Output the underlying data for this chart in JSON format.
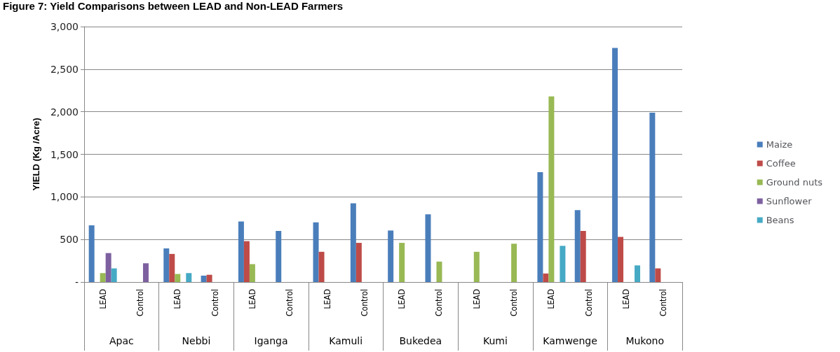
{
  "chart_data": {
    "type": "bar",
    "title": "Figure 7: Yield Comparisons between LEAD and Non-LEAD Farmers",
    "ylabel": "YIELD (Kg /Acre)",
    "categories": [
      "LEAD",
      "Control",
      "LEAD",
      "Control",
      "LEAD",
      "Control",
      "LEAD",
      "Control",
      "LEAD",
      "Control",
      "LEAD",
      "Control",
      "LEAD",
      "Control",
      "LEAD",
      "Control"
    ],
    "annotations": [
      "Apac",
      "Nebbi",
      "Iganga",
      "Kamuli",
      "Bukedea",
      "Kumi",
      "Kamwenge",
      "Mukono"
    ],
    "series": [
      {
        "name": "Maize",
        "color": "#4a7ebb",
        "values": [
          665,
          0,
          395,
          75,
          710,
          600,
          700,
          925,
          605,
          795,
          0,
          0,
          1290,
          845,
          2750,
          1990
        ]
      },
      {
        "name": "Coffee",
        "color": "#be4b48",
        "values": [
          0,
          0,
          330,
          85,
          480,
          0,
          355,
          460,
          0,
          0,
          0,
          0,
          100,
          600,
          530,
          160
        ]
      },
      {
        "name": "Ground nuts",
        "color": "#98b954",
        "values": [
          105,
          0,
          95,
          0,
          210,
          0,
          0,
          0,
          460,
          240,
          355,
          450,
          2180,
          0,
          0,
          0
        ]
      },
      {
        "name": "Sunflower",
        "color": "#7d60a0",
        "values": [
          340,
          220,
          0,
          0,
          0,
          0,
          0,
          0,
          0,
          0,
          0,
          0,
          0,
          0,
          0,
          0
        ]
      },
      {
        "name": "Beans",
        "color": "#46aac5",
        "values": [
          160,
          0,
          105,
          0,
          0,
          0,
          0,
          0,
          0,
          0,
          0,
          0,
          425,
          0,
          195,
          0
        ]
      }
    ],
    "ylim": [
      0,
      3000
    ],
    "yticks": [
      {
        "value": 0,
        "label": "-"
      },
      500,
      {
        "value": 1000,
        "label": "1,000"
      },
      {
        "value": 1500,
        "label": "1,500"
      },
      {
        "value": 2000,
        "label": "2,000"
      },
      {
        "value": 2500,
        "label": "2,500"
      },
      {
        "value": 3000,
        "label": "3,000"
      }
    ],
    "grid": "y",
    "legend": "right"
  }
}
